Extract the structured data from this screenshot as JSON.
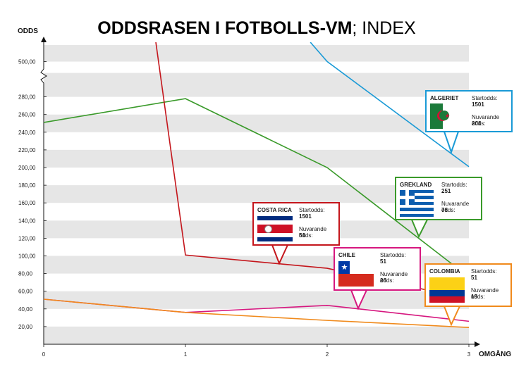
{
  "chart_data": {
    "type": "line",
    "title_bold": "ODDSRASEN I FOTBOLLS-VM",
    "title_light": "; INDEX",
    "ylabel": "ODDS",
    "xlabel": "OMGÅNG",
    "x": [
      0,
      1,
      2,
      3
    ],
    "x_ticks": [
      "0",
      "1",
      "2",
      "3"
    ],
    "y_ticks": [
      "20,00",
      "40,00",
      "60,00",
      "80,00",
      "100,00",
      "120,00",
      "140,00",
      "160,00",
      "180,00",
      "200,00",
      "220,00",
      "240,00",
      "260,00",
      "280,00",
      "500,00"
    ],
    "ylim": [
      0,
      500
    ],
    "y_break": [
      290,
      490
    ],
    "grid": "horizontal bands",
    "series": [
      {
        "name": "ALGERIET",
        "color": "#1a9ad6",
        "values": [
          1501,
          1501,
          501,
          201
        ]
      },
      {
        "name": "GREKLAND",
        "color": "#3a9a2a",
        "values": [
          251,
          278,
          200,
          76
        ]
      },
      {
        "name": "COSTA RICA",
        "color": "#c4161c",
        "values": [
          1501,
          101,
          86,
          51
        ]
      },
      {
        "name": "CHILE",
        "color": "#d6177f",
        "values": [
          51,
          36,
          44,
          26
        ]
      },
      {
        "name": "COLOMBIA",
        "color": "#f08a1c",
        "values": [
          51,
          36,
          27,
          19
        ]
      }
    ]
  },
  "callouts": [
    {
      "name": "ALGERIET",
      "start_label": "Startodds:",
      "start": "1501",
      "now_label": "Nuvarande odds:",
      "now": "201"
    },
    {
      "name": "GREKLAND",
      "start_label": "Startodds:",
      "start": "251",
      "now_label": "Nuvarande odds:",
      "now": "76"
    },
    {
      "name": "COSTA RICA",
      "start_label": "Startodds:",
      "start": "1501",
      "now_label": "Nuvarande odds:",
      "now": "51"
    },
    {
      "name": "CHILE",
      "start_label": "Startodds:",
      "start": "51",
      "now_label": "Nuvarande odds:",
      "now": "26"
    },
    {
      "name": "COLOMBIA",
      "start_label": "Startodds:",
      "start": "51",
      "now_label": "Nuvarande odds:",
      "now": "19"
    }
  ]
}
